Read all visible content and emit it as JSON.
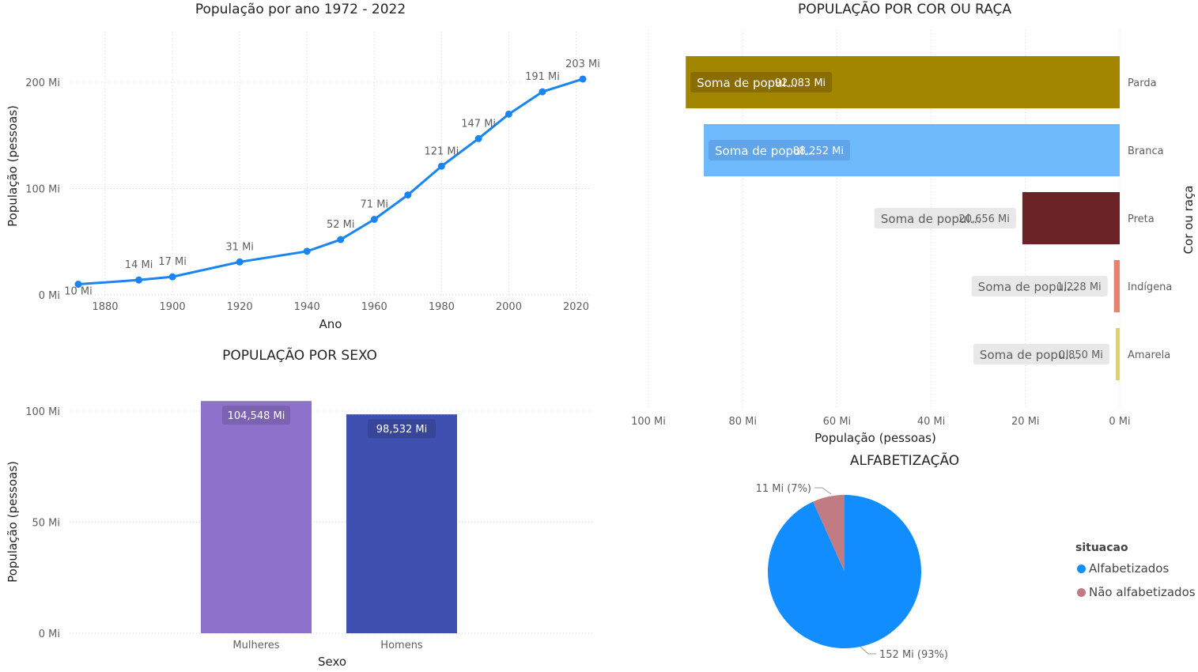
{
  "colors": {
    "line": "#1a85f0",
    "mulheres": "#8e71cb",
    "homens": "#4050b0",
    "alfabetizados": "#118dff",
    "nao_alfabetizados": "#c07b83"
  },
  "chart_data": [
    {
      "id": "line",
      "type": "line",
      "title": "População por ano 1972 - 2022",
      "xlabel": "Ano",
      "ylabel": "População (pessoas)",
      "xlim": [
        1872,
        2022
      ],
      "ylim": [
        0,
        240
      ],
      "x_ticks": [
        1880,
        1900,
        1920,
        1940,
        1960,
        1980,
        2000,
        2020
      ],
      "y_ticks": [
        {
          "v": 0,
          "label": "0 Mi"
        },
        {
          "v": 100,
          "label": "100 Mi"
        },
        {
          "v": 200,
          "label": "200 Mi"
        }
      ],
      "series": [
        {
          "x": [
            1872,
            1890,
            1900,
            1920,
            1940,
            1950,
            1960,
            1970,
            1980,
            1991,
            2000,
            2010,
            2022
          ],
          "values": [
            10,
            14,
            17,
            31,
            41,
            52,
            71,
            94,
            121,
            147,
            170,
            191,
            203
          ],
          "labels": [
            "10 Mi",
            "14 Mi",
            "17 Mi",
            "31 Mi",
            "",
            "52 Mi",
            "71 Mi",
            "",
            "121 Mi",
            "147 Mi",
            "",
            "191 Mi",
            "203 Mi"
          ]
        }
      ]
    },
    {
      "id": "race",
      "type": "bar",
      "orientation": "horizontal",
      "title": "POPULAÇÃO POR COR OU RAÇA",
      "xlabel": "População (pessoas)",
      "ylabel": "Cor ou raça",
      "xlim": [
        0,
        100
      ],
      "x_reversed": true,
      "x_ticks": [
        {
          "v": 100,
          "label": "100 Mi"
        },
        {
          "v": 80,
          "label": "80 Mi"
        },
        {
          "v": 60,
          "label": "60 Mi"
        },
        {
          "v": 40,
          "label": "40 Mi"
        },
        {
          "v": 20,
          "label": "20 Mi"
        },
        {
          "v": 0,
          "label": "0 Mi"
        }
      ],
      "categories": [
        "Parda",
        "Branca",
        "Preta",
        "Indígena",
        "Amarela"
      ],
      "values": [
        92.083,
        88.252,
        20.656,
        1.228,
        0.85
      ],
      "value_labels": [
        "92,083 Mi",
        "88,252 Mi",
        "20,656 Mi",
        "1,228 Mi",
        "0,850 Mi"
      ],
      "tooltip_prefix": "Soma de popul...",
      "bar_colors": [
        "#a38600",
        "#6eb9fc",
        "#6b2226",
        "#e8826a",
        "#e9cd6a"
      ]
    },
    {
      "id": "sex",
      "type": "bar",
      "title": "POPULAÇÃO POR SEXO",
      "xlabel": "Sexo",
      "ylabel": "População (pessoas)",
      "ylim": [
        0,
        105
      ],
      "y_ticks": [
        {
          "v": 0,
          "label": "0 Mi"
        },
        {
          "v": 50,
          "label": "50 Mi"
        },
        {
          "v": 100,
          "label": "100 Mi"
        }
      ],
      "categories": [
        "Mulheres",
        "Homens"
      ],
      "values": [
        104.548,
        98.532
      ],
      "value_labels": [
        "104,548 Mi",
        "98,532 Mi"
      ]
    },
    {
      "id": "pie",
      "type": "pie",
      "title": "ALFABETIZAÇÃO",
      "legend_title": "situacao",
      "legend_position": "right",
      "labels": [
        "Alfabetizados",
        "Não alfabetizados"
      ],
      "values": [
        152,
        11
      ],
      "percent": [
        93,
        7
      ],
      "slice_labels": [
        "152 Mi (93%)",
        "11 Mi (7%)"
      ]
    }
  ]
}
